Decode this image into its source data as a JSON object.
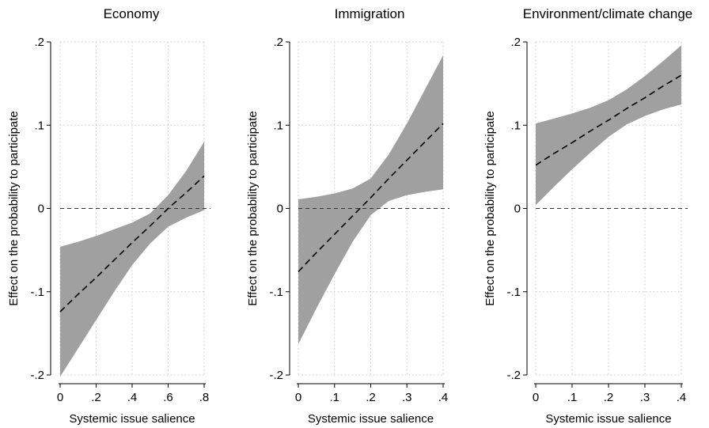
{
  "chart_data": [
    {
      "type": "line",
      "title": "Economy",
      "xlabel": "Systemic issue salience",
      "ylabel": "Effect on the probability to participate",
      "xlim": [
        0,
        0.8
      ],
      "ylim": [
        -0.2,
        0.2
      ],
      "x_ticks": [
        0,
        0.2,
        0.4,
        0.6,
        0.8
      ],
      "x_tick_labels": [
        "0",
        ".2",
        ".4",
        ".6",
        ".8"
      ],
      "y_ticks": [
        -0.2,
        -0.1,
        0,
        0.1,
        0.2
      ],
      "y_tick_labels": [
        "-.2",
        "-.1",
        "0",
        ".1",
        ".2"
      ],
      "grid": true,
      "reference_line": 0,
      "series": [
        {
          "x": [
            0,
            0.1,
            0.2,
            0.3,
            0.4,
            0.5,
            0.6,
            0.7,
            0.8
          ],
          "estimate": [
            -0.124,
            -0.103,
            -0.083,
            -0.062,
            -0.041,
            -0.021,
            0.0,
            0.019,
            0.039
          ],
          "upper": [
            -0.046,
            -0.04,
            -0.033,
            -0.025,
            -0.017,
            -0.006,
            0.016,
            0.045,
            0.08
          ],
          "lower": [
            -0.202,
            -0.168,
            -0.134,
            -0.1,
            -0.068,
            -0.042,
            -0.022,
            -0.011,
            -0.002
          ]
        }
      ],
      "band_color": "#a0a0a0",
      "line_color": "#000000"
    },
    {
      "type": "line",
      "title": "Immigration",
      "xlabel": "Systemic issue salience",
      "ylabel": "Effect on the probability to participate",
      "xlim": [
        0,
        0.4
      ],
      "ylim": [
        -0.2,
        0.2
      ],
      "x_ticks": [
        0,
        0.1,
        0.2,
        0.3,
        0.4
      ],
      "x_tick_labels": [
        "0",
        ".1",
        ".2",
        ".3",
        ".4"
      ],
      "y_ticks": [
        -0.2,
        -0.1,
        0,
        0.1,
        0.2
      ],
      "y_tick_labels": [
        "-.2",
        "-.1",
        "0",
        ".1",
        ".2"
      ],
      "grid": true,
      "reference_line": 0,
      "series": [
        {
          "x": [
            0,
            0.05,
            0.1,
            0.15,
            0.2,
            0.25,
            0.3,
            0.35,
            0.4
          ],
          "estimate": [
            -0.076,
            -0.053,
            -0.031,
            -0.009,
            0.013,
            0.036,
            0.058,
            0.08,
            0.102
          ],
          "upper": [
            0.011,
            0.014,
            0.018,
            0.024,
            0.036,
            0.065,
            0.102,
            0.143,
            0.184
          ],
          "lower": [
            -0.163,
            -0.12,
            -0.079,
            -0.04,
            -0.008,
            0.009,
            0.016,
            0.02,
            0.023
          ]
        }
      ],
      "band_color": "#a0a0a0",
      "line_color": "#000000"
    },
    {
      "type": "line",
      "title": "Environment/climate change",
      "xlabel": "Systemic issue salience",
      "ylabel": "Effect on the probability to participate",
      "xlim": [
        0,
        0.4
      ],
      "ylim": [
        -0.2,
        0.2
      ],
      "x_ticks": [
        0,
        0.1,
        0.2,
        0.3,
        0.4
      ],
      "x_tick_labels": [
        "0",
        ".1",
        ".2",
        ".3",
        ".4"
      ],
      "y_ticks": [
        -0.2,
        -0.1,
        0,
        0.1,
        0.2
      ],
      "y_tick_labels": [
        "-.2",
        "-.1",
        "0",
        ".1",
        ".2"
      ],
      "grid": true,
      "reference_line": 0,
      "series": [
        {
          "x": [
            0,
            0.05,
            0.1,
            0.15,
            0.2,
            0.25,
            0.3,
            0.35,
            0.4
          ],
          "estimate": [
            0.052,
            0.066,
            0.079,
            0.093,
            0.106,
            0.12,
            0.133,
            0.147,
            0.16
          ],
          "upper": [
            0.102,
            0.108,
            0.114,
            0.121,
            0.13,
            0.143,
            0.159,
            0.177,
            0.196
          ],
          "lower": [
            0.004,
            0.026,
            0.047,
            0.067,
            0.086,
            0.101,
            0.111,
            0.119,
            0.125
          ]
        }
      ],
      "band_color": "#a0a0a0",
      "line_color": "#000000"
    }
  ]
}
